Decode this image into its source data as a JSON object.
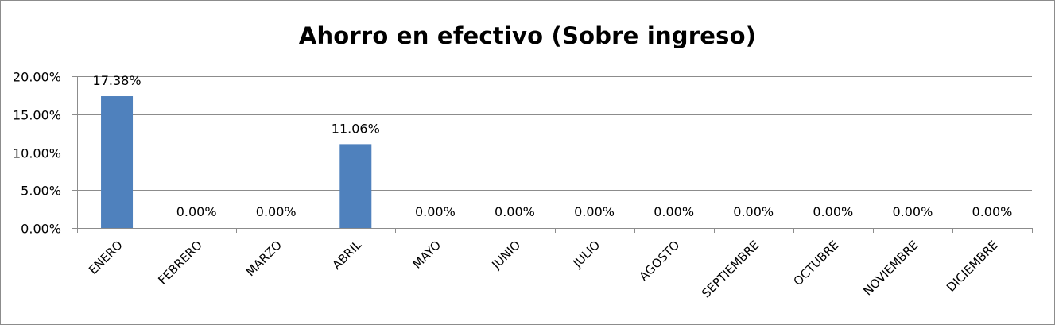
{
  "chart_data": {
    "type": "bar",
    "title": "Ahorro en efectivo (Sobre ingreso)",
    "categories": [
      "ENERO",
      "FEBRERO",
      "MARZO",
      "ABRIL",
      "MAYO",
      "JUNIO",
      "JULIO",
      "AGOSTO",
      "SEPTIEMBRE",
      "OCTUBRE",
      "NOVIEMBRE",
      "DICIEMBRE"
    ],
    "values": [
      17.38,
      0,
      0,
      11.06,
      0,
      0,
      0,
      0,
      0,
      0,
      0,
      0
    ],
    "data_labels": [
      "17.38%",
      "0.00%",
      "0.00%",
      "11.06%",
      "0.00%",
      "0.00%",
      "0.00%",
      "0.00%",
      "0.00%",
      "0.00%",
      "0.00%",
      "0.00%"
    ],
    "ylim": [
      0,
      20
    ],
    "yticks": [
      0,
      5,
      10,
      15,
      20
    ],
    "ytick_labels": [
      "0.00%",
      "5.00%",
      "10.00%",
      "15.00%",
      "20.00%"
    ],
    "xlabel": "",
    "ylabel": "",
    "grid": true,
    "legend": "none",
    "bar_color": "#4f81bd"
  }
}
